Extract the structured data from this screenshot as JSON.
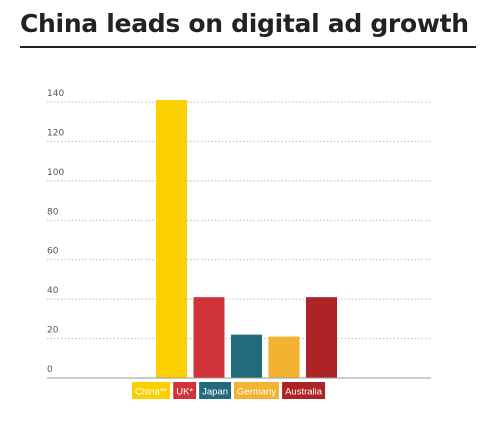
{
  "chart_data": {
    "type": "bar",
    "title": "China leads on digital ad growth",
    "categories": [
      "China**",
      "UK*",
      "Japan",
      "Germany",
      "Australia"
    ],
    "values": [
      141,
      41,
      22,
      21,
      41
    ],
    "colors": [
      "#fcd000",
      "#d0343a",
      "#236a7c",
      "#f3b22f",
      "#ae2426"
    ],
    "ylim": [
      0,
      140
    ],
    "yticks": [
      0,
      20,
      40,
      60,
      80,
      100,
      120,
      140
    ],
    "grid": true,
    "xlabel": "",
    "ylabel": ""
  }
}
